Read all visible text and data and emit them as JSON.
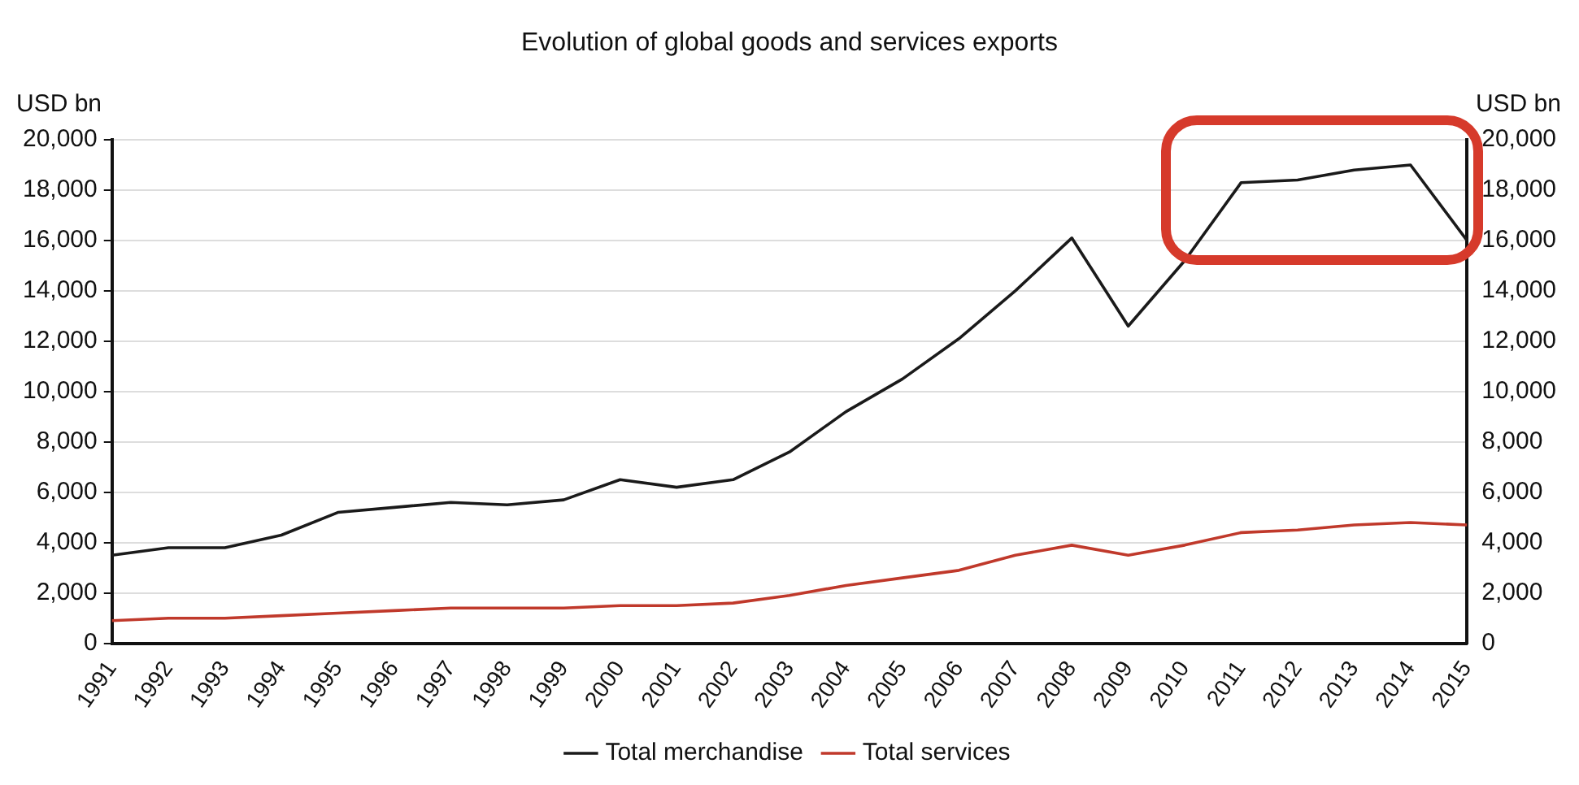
{
  "chart_data": {
    "type": "line",
    "title": "Evolution of global goods and services exports",
    "ylabel": "USD bn",
    "y2label": "USD bn",
    "categories": [
      "1991",
      "1992",
      "1993",
      "1994",
      "1995",
      "1996",
      "1997",
      "1998",
      "1999",
      "2000",
      "2001",
      "2002",
      "2003",
      "2004",
      "2005",
      "2006",
      "2007",
      "2008",
      "2009",
      "2010",
      "2011",
      "2012",
      "2013",
      "2014",
      "2015"
    ],
    "series": [
      {
        "name": "Total merchandise",
        "color": "#1a1a1a",
        "values": [
          3500,
          3800,
          3800,
          4300,
          5200,
          5400,
          5600,
          5500,
          5700,
          6500,
          6200,
          6500,
          7600,
          9200,
          10500,
          12100,
          14000,
          16100,
          12600,
          15200,
          18300,
          18400,
          18800,
          19000,
          16000
        ]
      },
      {
        "name": "Total services",
        "color": "#c0392b",
        "values": [
          900,
          1000,
          1000,
          1100,
          1200,
          1300,
          1400,
          1400,
          1400,
          1500,
          1500,
          1600,
          1900,
          2300,
          2600,
          2900,
          3500,
          3900,
          3500,
          3900,
          4400,
          4500,
          4700,
          4800,
          4700
        ]
      }
    ],
    "ylim": [
      0,
      20000
    ],
    "yticks": [
      0,
      {
        "value": 2000,
        "label": "2,000"
      },
      {
        "value": 4000,
        "label": "4,000"
      },
      {
        "value": 6000,
        "label": "6,000"
      },
      {
        "value": 8000,
        "label": "8,000"
      },
      {
        "value": 10000,
        "label": "10,000"
      },
      {
        "value": 12000,
        "label": "12,000"
      },
      {
        "value": 14000,
        "label": "14,000"
      },
      {
        "value": 16000,
        "label": "16,000"
      },
      {
        "value": 18000,
        "label": "18,000"
      },
      {
        "value": 20000,
        "label": "20,000"
      }
    ],
    "y2lim": [
      0,
      20000
    ],
    "y2ticks": [
      0,
      {
        "value": 2000,
        "label": "2,000"
      },
      {
        "value": 4000,
        "label": "4,000"
      },
      {
        "value": 6000,
        "label": "6,000"
      },
      {
        "value": 8000,
        "label": "8,000"
      },
      {
        "value": 10000,
        "label": "10,000"
      },
      {
        "value": 12000,
        "label": "12,000"
      },
      {
        "value": 14000,
        "label": "14,000"
      },
      {
        "value": 16000,
        "label": "16,000"
      },
      {
        "value": 18000,
        "label": "18,000"
      },
      {
        "value": 20000,
        "label": "20,000"
      }
    ],
    "grid": "y",
    "legend": "bottom",
    "marker": "none",
    "line_style": "solid"
  }
}
